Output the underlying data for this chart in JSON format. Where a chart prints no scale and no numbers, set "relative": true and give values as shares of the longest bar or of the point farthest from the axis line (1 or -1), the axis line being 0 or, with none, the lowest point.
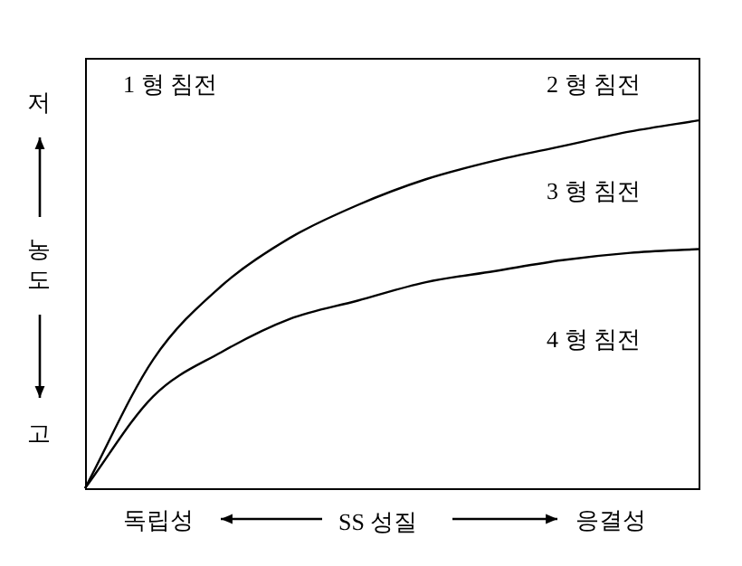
{
  "chart_data": {
    "type": "line",
    "relative": true,
    "xlabel": "SS 성질",
    "ylabel": "농도",
    "categories": [
      null,
      null,
      null,
      null,
      null,
      null,
      null,
      null,
      null,
      null
    ],
    "series": [
      {
        "color": "#000000",
        "values": [
          0,
          0.35,
          0.55,
          0.68,
          0.77,
          0.84,
          0.89,
          0.93,
          0.97,
          1
        ]
      },
      {
        "color": "#000000",
        "values": [
          0,
          0.25,
          0.37,
          0.46,
          0.51,
          0.56,
          0.59,
          0.62,
          0.64,
          0.65
        ]
      }
    ],
    "annotations": [
      "1 형 침전",
      "2 형 침전",
      "3 형 침전",
      "4 형 침전",
      "저",
      "고",
      "독립성",
      "응결성"
    ],
    "legend": false,
    "tick_labels": false,
    "marker": "none",
    "line_style": "solid"
  }
}
